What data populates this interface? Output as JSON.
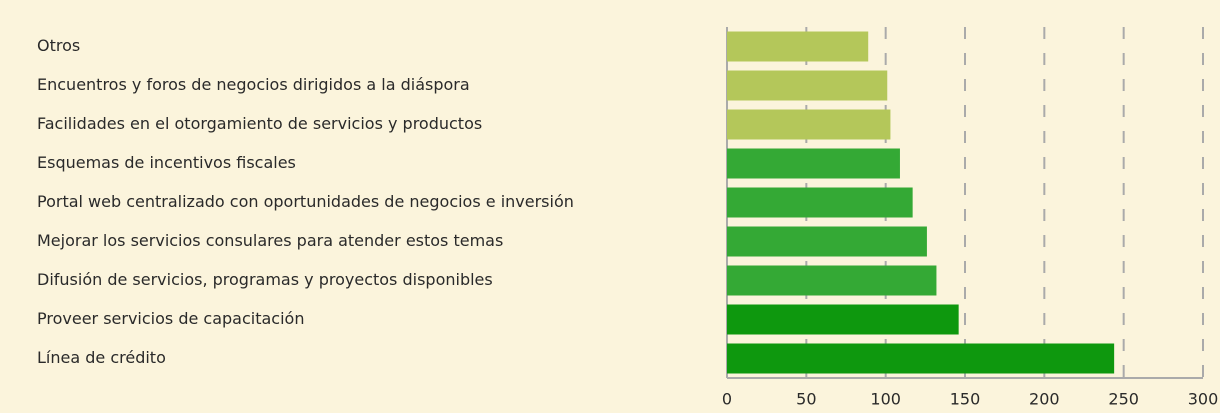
{
  "chart_data": {
    "type": "hbar",
    "categories": [
      "Otros",
      "Encuentros y foros de negocios dirigidos a la diáspora",
      "Facilidades en el otorgamiento de servicios y productos",
      "Esquemas de incentivos fiscales",
      "Portal web centralizado con oportunidades de negocios e inversión",
      "Mejorar los servicios consulares para atender estos temas",
      "Difusión de servicios, programas y proyectos disponibles",
      "Proveer servicios de capacitación",
      "Línea de crédito"
    ],
    "values": [
      89,
      101,
      103,
      109,
      117,
      126,
      132,
      146,
      244
    ],
    "colors": [
      "#b4c75a",
      "#b4c75a",
      "#b4c75a",
      "#34a935",
      "#34a935",
      "#34a935",
      "#34a935",
      "#0e980e",
      "#0e980e"
    ],
    "xlim": [
      0,
      300
    ],
    "xticks": [
      0,
      50,
      100,
      150,
      200,
      250,
      300
    ],
    "grid": true
  }
}
